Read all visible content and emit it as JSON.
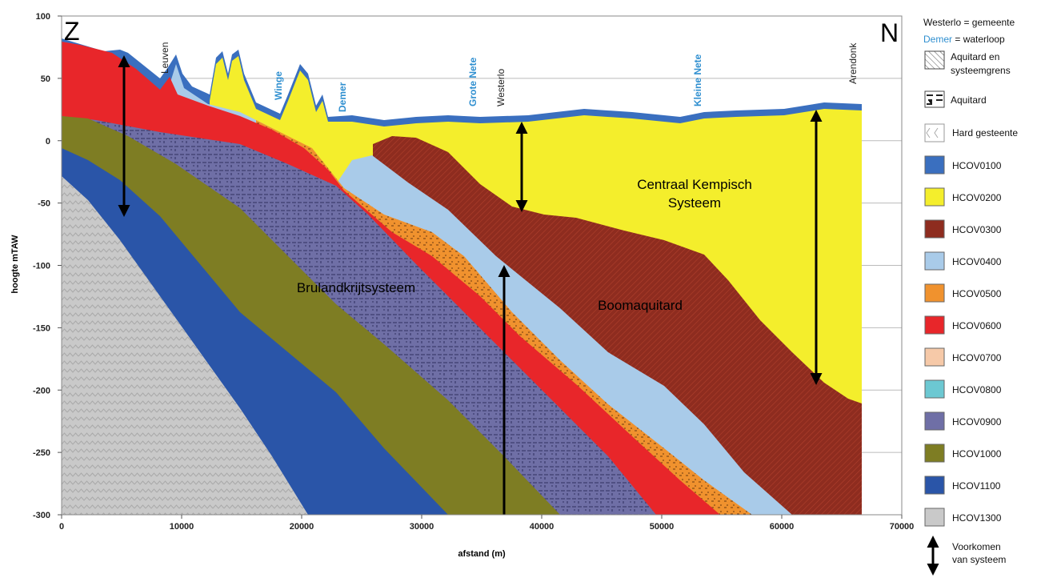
{
  "corners": {
    "left": "Z",
    "right": "N"
  },
  "axes": {
    "x_label": "afstand (m)",
    "y_label": "hoogte mTAW",
    "x_ticks": [
      0,
      10000,
      20000,
      30000,
      40000,
      50000,
      60000,
      70000
    ],
    "y_ticks": [
      100,
      50,
      0,
      -50,
      -100,
      -150,
      -200,
      -250,
      -300
    ]
  },
  "place_labels": [
    {
      "text": "Leuven",
      "kind": "gemeente"
    },
    {
      "text": "Winge",
      "kind": "waterloop"
    },
    {
      "text": "Demer",
      "kind": "waterloop"
    },
    {
      "text": "Grote Nete",
      "kind": "waterloop"
    },
    {
      "text": "Westerlo",
      "kind": "gemeente"
    },
    {
      "text": "Kleine Nete",
      "kind": "waterloop"
    },
    {
      "text": "Arendonk",
      "kind": "gemeente"
    }
  ],
  "region_labels": {
    "centraal": [
      "Centraal Kempisch",
      "Systeem"
    ],
    "bruland": "Brulandkrijtsysteem",
    "boom": "Boomaquitard"
  },
  "legend": {
    "gemeente": "Westerlo = gemeente",
    "waterloop_name": "Demer",
    "waterloop_text": " = waterloop",
    "aquitard_grens": [
      "Aquitard en",
      "systeemgrens"
    ],
    "aquitard": "Aquitard",
    "hard": "Hard gesteente",
    "units": [
      {
        "label": "HCOV0100",
        "color": "#3a6fbf"
      },
      {
        "label": "HCOV0200",
        "color": "#f4ee2c"
      },
      {
        "label": "HCOV0300",
        "color": "#8e2c1f"
      },
      {
        "label": "HCOV0400",
        "color": "#a9cbe9"
      },
      {
        "label": "HCOV0500",
        "color": "#f0922e"
      },
      {
        "label": "HCOV0600",
        "color": "#e8262a"
      },
      {
        "label": "HCOV0700",
        "color": "#f6c9a8"
      },
      {
        "label": "HCOV0800",
        "color": "#6cc8d2"
      },
      {
        "label": "HCOV0900",
        "color": "#6f6fa6"
      },
      {
        "label": "HCOV1000",
        "color": "#7e7d23"
      },
      {
        "label": "HCOV1100",
        "color": "#2a55a8"
      },
      {
        "label": "HCOV1300",
        "color": "#c9c9c9"
      }
    ],
    "voorkomen": [
      "Voorkomen",
      "van systeem"
    ]
  }
}
